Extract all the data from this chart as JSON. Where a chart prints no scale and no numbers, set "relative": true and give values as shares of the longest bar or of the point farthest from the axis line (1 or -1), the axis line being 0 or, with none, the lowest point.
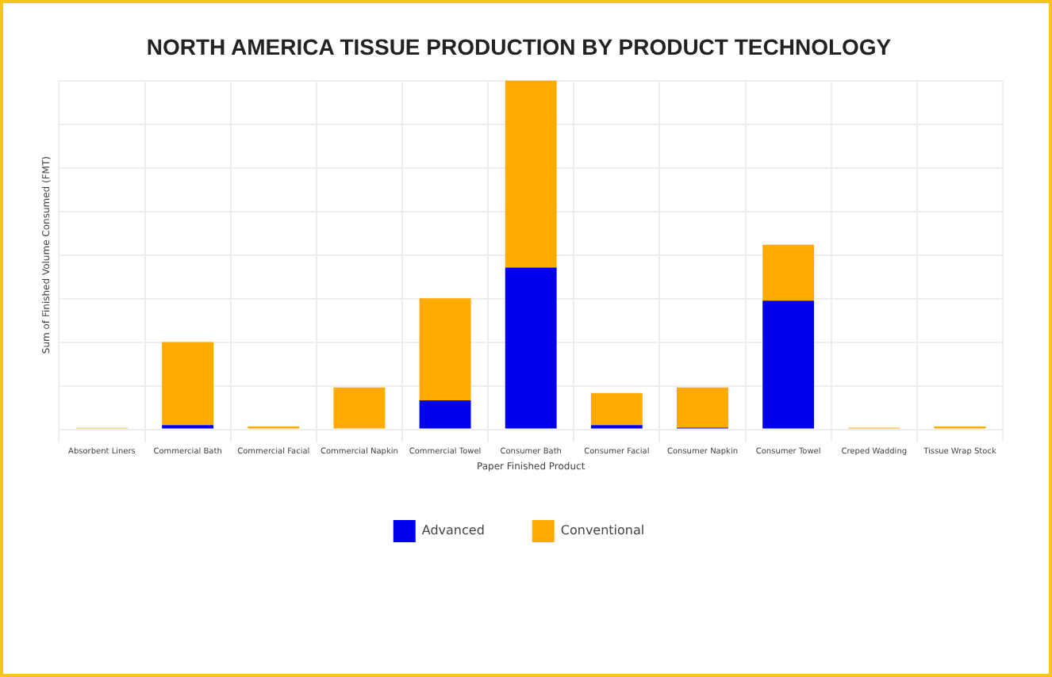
{
  "chart_data": {
    "type": "bar",
    "title": "NORTH AMERICA TISSUE PRODUCTION BY PRODUCT TECHNOLOGY",
    "xlabel": "Paper Finished Product",
    "ylabel": "Sum of Finished Volume Consumed (FMT)",
    "categories": [
      "Absorbent Liners",
      "Commercial Bath",
      "Commercial Facial",
      "Commercial Napkin",
      "Commercial Towel",
      "Consumer Bath",
      "Consumer Facial",
      "Consumer Napkin",
      "Consumer Towel",
      "Creped Wadding",
      "Tissue Wrap Stock"
    ],
    "series": [
      {
        "name": "Advanced",
        "color": "#0000ee",
        "values": [
          0,
          0.012,
          0,
          0,
          0.083,
          0.464,
          0.012,
          0.005,
          0.369,
          0,
          0
        ]
      },
      {
        "name": "Conventional",
        "color": "#ffaa00",
        "values": [
          0.004,
          0.238,
          0.008,
          0.12,
          0.293,
          0.536,
          0.092,
          0.115,
          0.16,
          0.005,
          0.008
        ]
      }
    ],
    "stacked": true,
    "relative": true,
    "grid": true,
    "legend": "bottom"
  }
}
